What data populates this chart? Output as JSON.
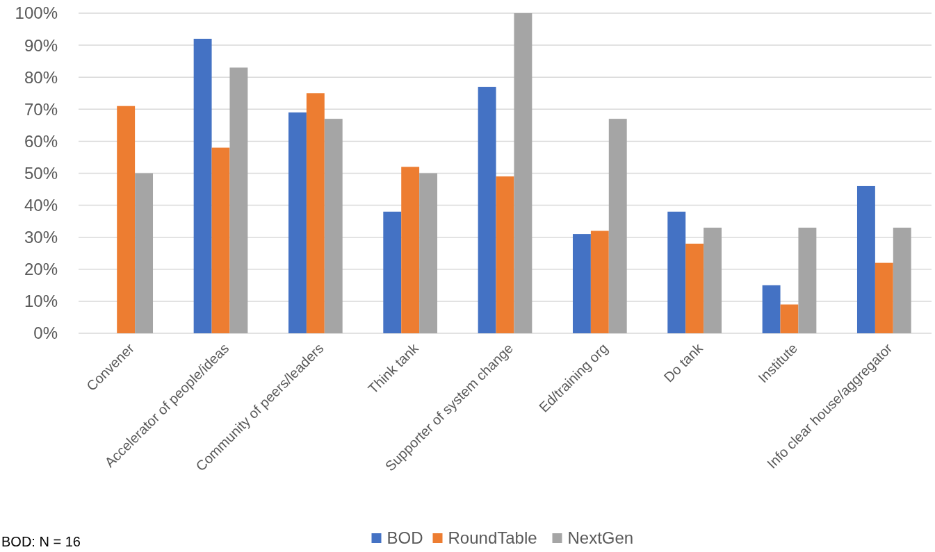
{
  "chart_data": {
    "type": "bar",
    "categories": [
      "Convener",
      "Accelerator of people/ideas",
      "Community of peers/leaders",
      "Think tank",
      "Supporter of system change",
      "Ed/training org",
      "Do tank",
      "Institute",
      "Info clear house/aggregator"
    ],
    "series": [
      {
        "name": "BOD",
        "color": "#4472c4",
        "values": [
          0,
          92,
          69,
          38,
          77,
          31,
          38,
          15,
          46
        ]
      },
      {
        "name": "RoundTable",
        "color": "#ed7d31",
        "values": [
          71,
          58,
          75,
          52,
          49,
          32,
          28,
          9,
          22
        ]
      },
      {
        "name": "NextGen",
        "color": "#a5a5a5",
        "values": [
          50,
          83,
          67,
          50,
          100,
          67,
          33,
          33,
          33
        ]
      }
    ],
    "ylim": [
      0,
      100
    ],
    "yticks": [
      {
        "value": 0,
        "label": "0%"
      },
      {
        "value": 10,
        "label": "10%"
      },
      {
        "value": 20,
        "label": "20%"
      },
      {
        "value": 30,
        "label": "30%"
      },
      {
        "value": 40,
        "label": "40%"
      },
      {
        "value": 50,
        "label": "50%"
      },
      {
        "value": 60,
        "label": "60%"
      },
      {
        "value": 70,
        "label": "70%"
      },
      {
        "value": 80,
        "label": "80%"
      },
      {
        "value": 90,
        "label": "90%"
      },
      {
        "value": 100,
        "label": "100%"
      }
    ],
    "grid": "y",
    "legend": "bottom",
    "annotations": [
      "BOD: N = 16"
    ]
  }
}
